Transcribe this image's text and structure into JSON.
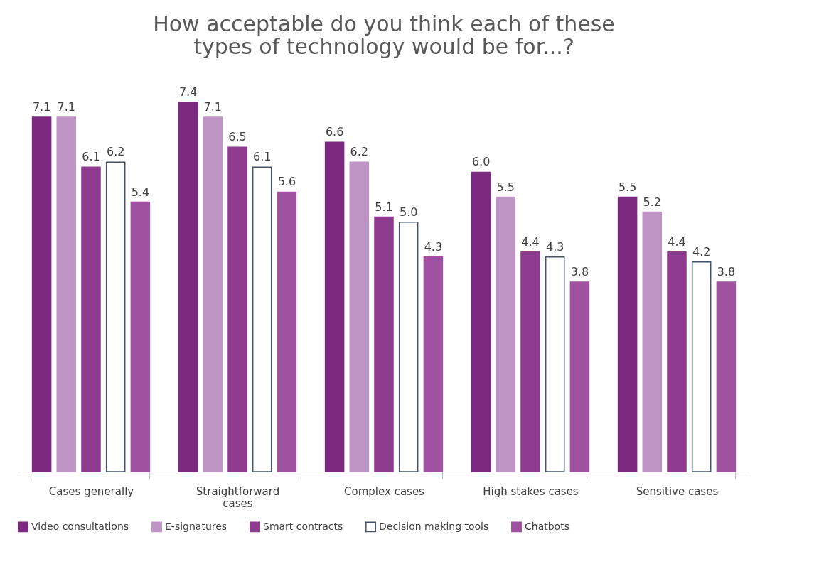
{
  "chart_data": {
    "type": "bar",
    "title": "How acceptable do you think each of these types of technology would be for...?",
    "categories": [
      "Cases generally",
      "Straightforward cases",
      "Complex cases",
      "High stakes cases",
      "Sensitive cases"
    ],
    "series": [
      {
        "name": "Video consultations",
        "color": "#7b2a7f",
        "values": [
          7.1,
          7.4,
          6.6,
          6.0,
          5.5
        ],
        "value_labels": [
          "7.1",
          "7.4",
          "6.6",
          "6.0",
          "5.5"
        ]
      },
      {
        "name": "E-signatures",
        "color": "#be95c4",
        "values": [
          7.1,
          7.1,
          6.2,
          5.5,
          5.2
        ],
        "value_labels": [
          "7.1",
          "7.1",
          "6.2",
          "5.5",
          "5.2"
        ]
      },
      {
        "name": "Smart contracts",
        "color": "#8e3a8e",
        "values": [
          6.1,
          6.5,
          5.1,
          4.4,
          4.4
        ],
        "value_labels": [
          "6.1",
          "6.5",
          "5.1",
          "4.4",
          "4.4"
        ]
      },
      {
        "name": "Decision making tools",
        "color": "#ffffff",
        "values": [
          6.2,
          6.1,
          5.0,
          4.3,
          4.2
        ],
        "value_labels": [
          "6.2",
          "6.1",
          "5.0",
          "4.3",
          "4.2"
        ]
      },
      {
        "name": "Chatbots",
        "color": "#a052a0",
        "values": [
          5.4,
          5.6,
          4.3,
          3.8,
          3.8
        ],
        "value_labels": [
          "5.4",
          "5.6",
          "4.3",
          "3.8",
          "3.8"
        ]
      }
    ],
    "legend": "bottom",
    "grid": false
  }
}
